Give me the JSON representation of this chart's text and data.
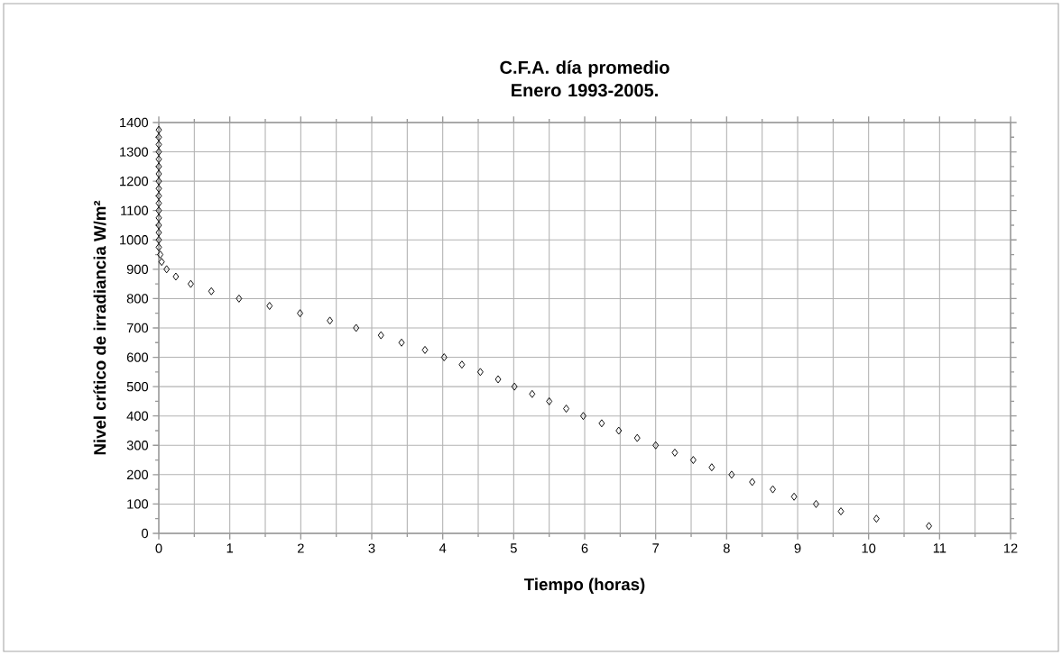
{
  "chart_data": {
    "type": "scatter",
    "title": "C.F.A. día promedio Enero 1993-2005.",
    "xlabel": "Tiempo (horas)",
    "ylabel": "Nivel crítico de irradiancia W/m²",
    "x": [
      10.85,
      10.11,
      9.61,
      9.26,
      8.95,
      8.65,
      8.36,
      8.07,
      7.79,
      7.53,
      7.27,
      7.0,
      6.74,
      6.48,
      6.24,
      5.98,
      5.74,
      5.5,
      5.26,
      5.01,
      4.78,
      4.53,
      4.27,
      4.02,
      3.75,
      3.42,
      3.13,
      2.78,
      2.41,
      1.99,
      1.56,
      1.13,
      0.74,
      0.45,
      0.24,
      0.11,
      0.04,
      0.02,
      0,
      0,
      0,
      0,
      0,
      0,
      0,
      0,
      0,
      0,
      0,
      0,
      0,
      0,
      0,
      0,
      0
    ],
    "values": [
      25,
      50,
      75,
      100,
      125,
      150,
      175,
      200,
      225,
      250,
      275,
      300,
      325,
      350,
      375,
      400,
      425,
      450,
      475,
      500,
      525,
      550,
      575,
      600,
      625,
      650,
      675,
      700,
      725,
      750,
      775,
      800,
      825,
      850,
      875,
      900,
      925,
      950,
      975,
      1000,
      1025,
      1050,
      1075,
      1100,
      1125,
      1150,
      1175,
      1200,
      1225,
      1250,
      1275,
      1300,
      1325,
      1350,
      1375
    ],
    "color": "#000000",
    "marker": "diamond",
    "grid": true,
    "xlim": [
      0,
      12
    ],
    "ylim": [
      0,
      1400
    ],
    "xticks": [
      0,
      1,
      2,
      3,
      4,
      5,
      6,
      7,
      8,
      9,
      10,
      11,
      12
    ],
    "yticks": [
      0,
      100,
      200,
      300,
      400,
      500,
      600,
      700,
      800,
      900,
      1000,
      1100,
      1200,
      1300,
      1400
    ]
  }
}
